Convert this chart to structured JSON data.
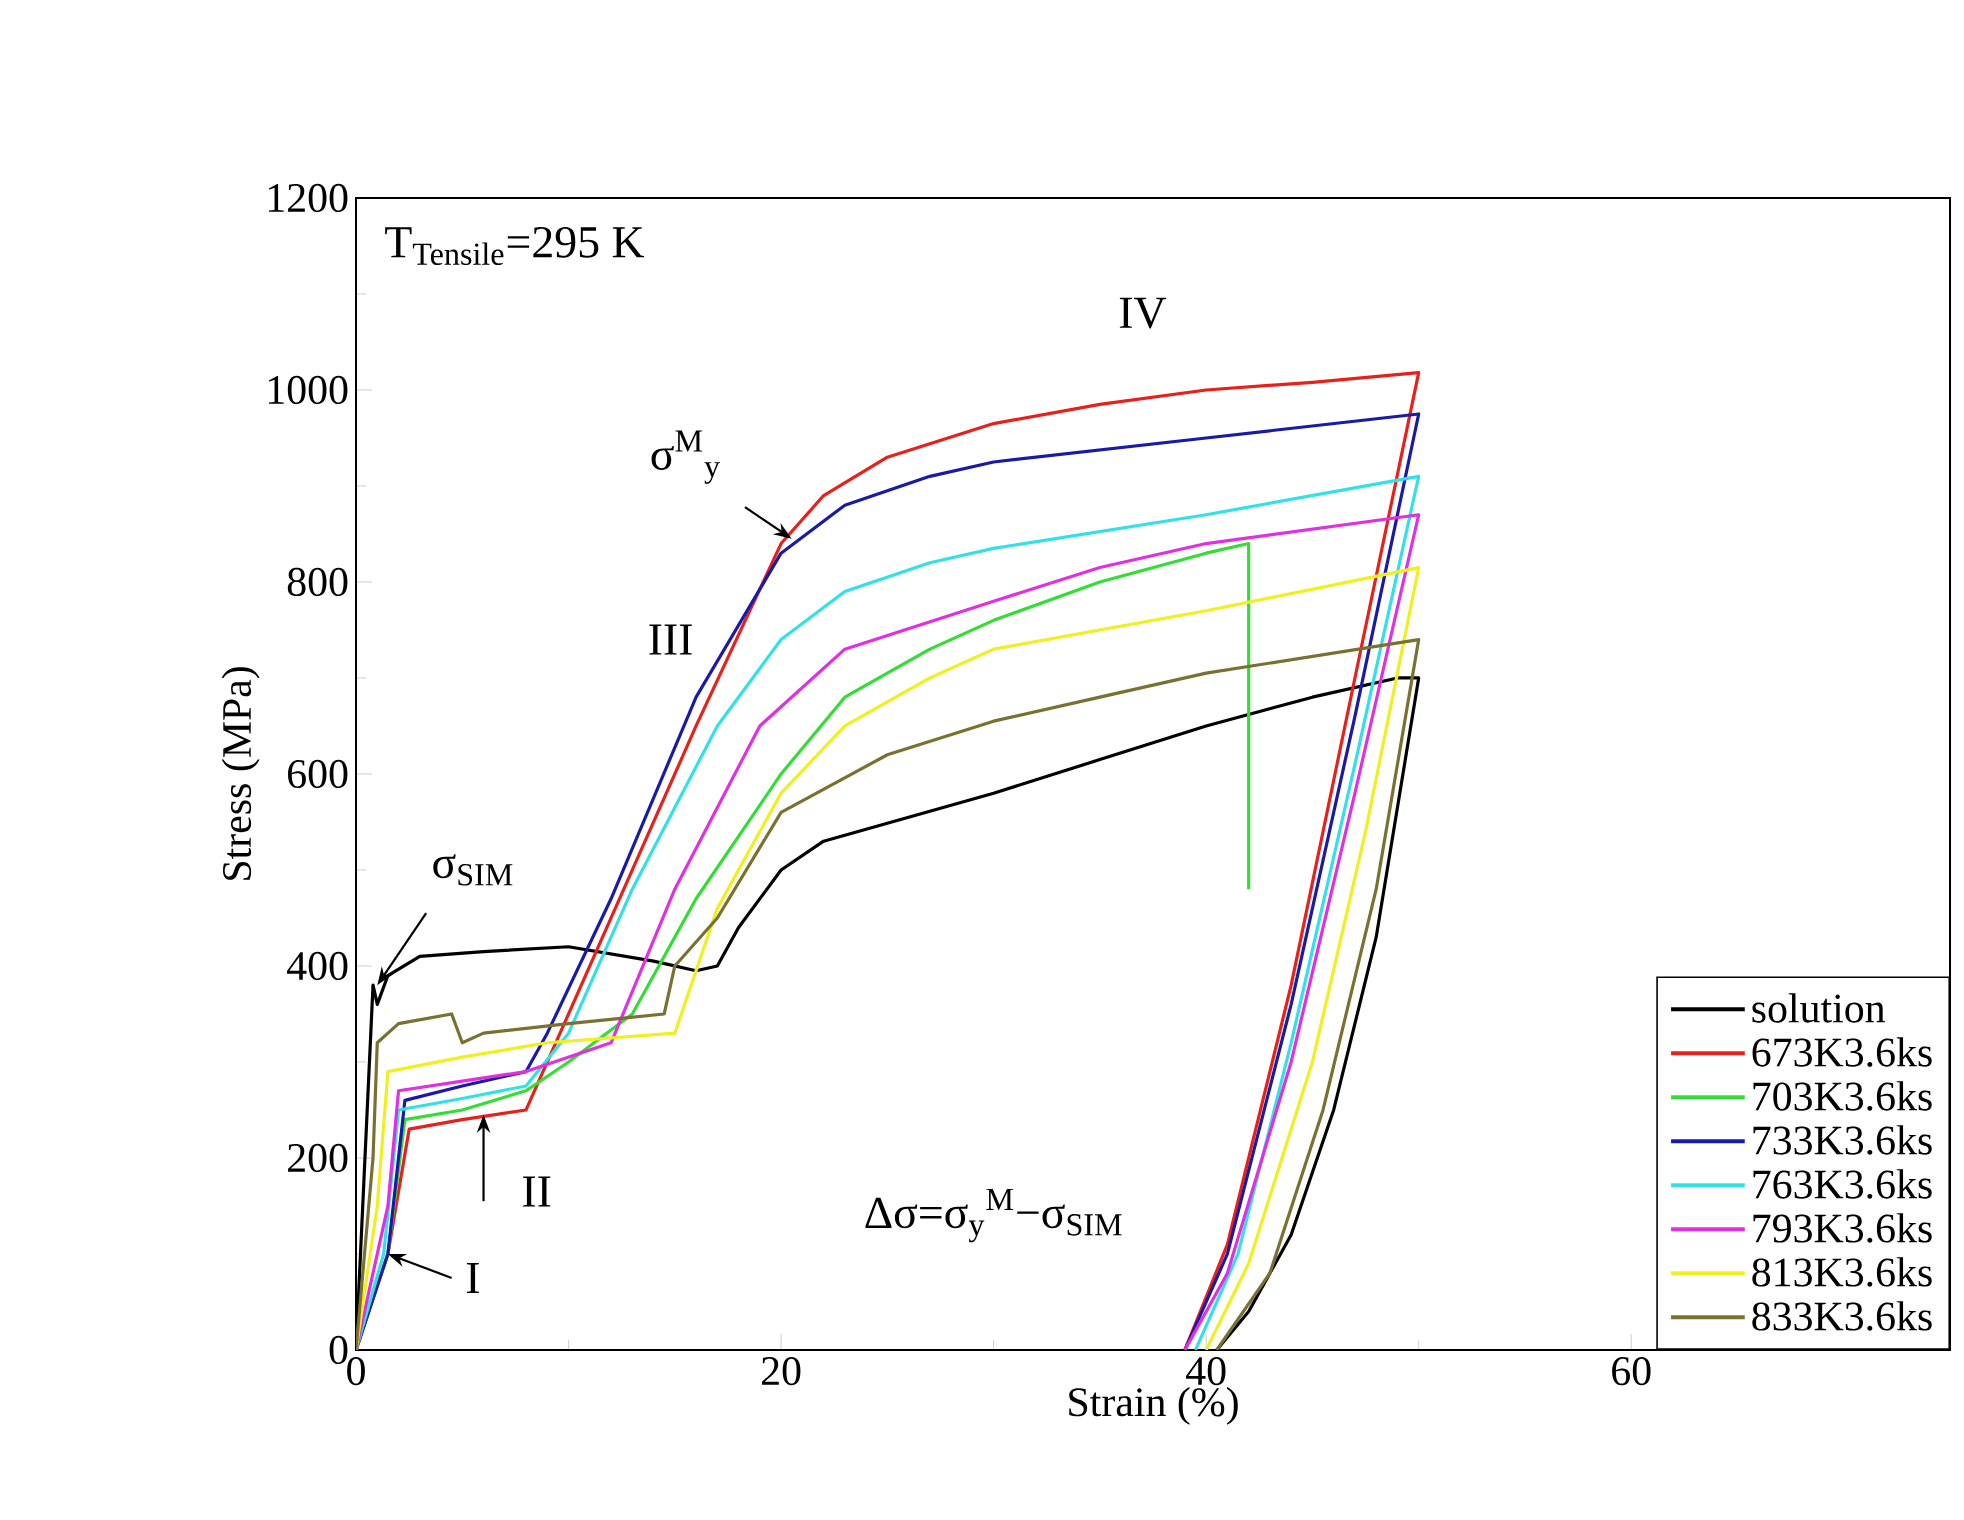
{
  "chart_data": {
    "type": "line",
    "xlabel": "Strain (%)",
    "ylabel": "Stress (MPa)",
    "xlim": [
      0,
      75
    ],
    "ylim": [
      0,
      1200
    ],
    "xticks": [
      0,
      20,
      40,
      60
    ],
    "yticks": [
      0,
      200,
      400,
      600,
      800,
      1000,
      1200
    ],
    "legend": "bottom right",
    "annotations": [
      "T$_{Tensile}$=295 K",
      "IV",
      "III",
      {
        "text": "σ$^{M}$$_{y}$",
        "x": 20.5,
        "y": 845
      },
      {
        "text": "σ$_{SIM}$",
        "x": 1,
        "y": 380
      },
      {
        "text": "II",
        "x": 6,
        "y": 245
      },
      {
        "text": "I",
        "x": 1.5,
        "y": 100
      },
      "Δσ=σ$_{y}$$^{M}$−σ$_{SIM}$"
    ],
    "series": [
      {
        "name": "solution",
        "color": "#000000",
        "x": [
          0,
          0.8,
          1,
          1.5,
          3,
          6,
          10,
          14,
          16,
          17,
          18,
          20,
          22,
          26,
          30,
          35,
          40,
          45,
          49,
          50,
          48,
          46,
          44,
          42,
          40.5
        ],
        "values": [
          0,
          380,
          360,
          390,
          410,
          415,
          420,
          405,
          395,
          400,
          440,
          500,
          530,
          555,
          580,
          615,
          650,
          680,
          700,
          700,
          430,
          250,
          120,
          40,
          0
        ]
      },
      {
        "name": "673K3.6ks",
        "color": "#e8201a",
        "x": [
          0,
          1.5,
          2.5,
          5,
          8,
          9,
          12,
          16,
          20,
          22,
          25,
          30,
          35,
          40,
          45,
          50,
          47,
          44,
          41,
          39
        ],
        "values": [
          0,
          100,
          230,
          240,
          250,
          300,
          450,
          650,
          840,
          890,
          930,
          965,
          985,
          1000,
          1008,
          1018,
          700,
          380,
          110,
          0
        ]
      },
      {
        "name": "703K3.6ks",
        "color": "#33dd33",
        "x": [
          0,
          1.5,
          2.3,
          5,
          8,
          10,
          13,
          16,
          20,
          23,
          27,
          30,
          35,
          40,
          42,
          42
        ],
        "values": [
          0,
          100,
          240,
          250,
          270,
          300,
          350,
          470,
          600,
          680,
          730,
          760,
          800,
          830,
          840,
          480
        ]
      },
      {
        "name": "733K3.6ks",
        "color": "#1a1aa8",
        "x": [
          0,
          1.5,
          2.3,
          5,
          8,
          9,
          12,
          16,
          20,
          23,
          27,
          30,
          40,
          50,
          47,
          44,
          41,
          39
        ],
        "values": [
          0,
          100,
          260,
          275,
          290,
          330,
          470,
          680,
          830,
          880,
          910,
          925,
          950,
          975,
          660,
          360,
          100,
          0
        ]
      },
      {
        "name": "763K3.6ks",
        "color": "#33e0e8",
        "x": [
          0,
          1.3,
          2,
          5,
          8,
          10,
          13,
          17,
          20,
          23,
          27,
          30,
          40,
          50,
          47,
          44,
          41.5,
          39.5
        ],
        "values": [
          0,
          100,
          250,
          262,
          275,
          330,
          480,
          650,
          740,
          790,
          820,
          835,
          870,
          910,
          610,
          320,
          100,
          0
        ]
      },
      {
        "name": "793K3.6ks",
        "color": "#e030e0",
        "x": [
          0,
          1.5,
          2,
          5,
          8,
          12,
          15,
          19,
          23,
          30,
          35,
          40,
          50,
          47,
          44,
          41,
          39
        ],
        "values": [
          0,
          150,
          270,
          280,
          290,
          320,
          480,
          650,
          730,
          780,
          815,
          840,
          870,
          580,
          300,
          80,
          0
        ]
      },
      {
        "name": "813K3.6ks",
        "color": "#f0f020",
        "x": [
          0,
          1,
          1.5,
          5,
          9,
          15,
          17,
          20,
          23,
          27,
          30,
          40,
          50,
          47.5,
          45,
          42,
          40
        ],
        "values": [
          0,
          150,
          290,
          305,
          320,
          330,
          460,
          580,
          650,
          700,
          730,
          770,
          815,
          540,
          300,
          90,
          0
        ]
      },
      {
        "name": "833K3.6ks",
        "color": "#7a7030",
        "x": [
          0,
          0.8,
          1,
          2,
          4.5,
          5,
          6,
          10,
          14.5,
          15,
          17,
          20,
          25,
          30,
          35,
          40,
          50,
          48,
          45.5,
          43,
          40.5
        ],
        "values": [
          0,
          200,
          320,
          340,
          350,
          320,
          330,
          340,
          350,
          400,
          450,
          560,
          620,
          655,
          680,
          705,
          740,
          480,
          250,
          80,
          0
        ]
      }
    ]
  }
}
